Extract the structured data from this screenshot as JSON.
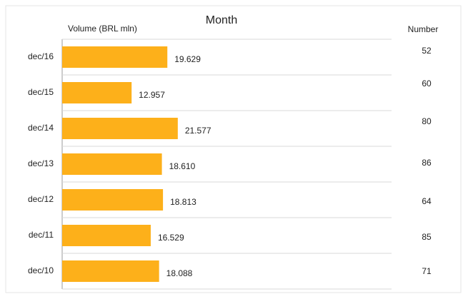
{
  "chart_data": {
    "type": "bar",
    "orientation": "horizontal",
    "title": "Month",
    "value_axis_label": "Volume (BRL mln)",
    "categories": [
      "dec/16",
      "dec/15",
      "dec/14",
      "dec/13",
      "dec/12",
      "dec/11",
      "dec/10"
    ],
    "values": [
      19.629,
      12.957,
      21.577,
      18.61,
      18.813,
      16.529,
      18.088
    ],
    "value_labels": [
      "19.629",
      "12.957",
      "21.577",
      "18.610",
      "18.813",
      "16.529",
      "18.088"
    ],
    "color": "#fdb01a",
    "number_header": "Number",
    "numbers": [
      52,
      60,
      80,
      86,
      64,
      85,
      71
    ]
  }
}
